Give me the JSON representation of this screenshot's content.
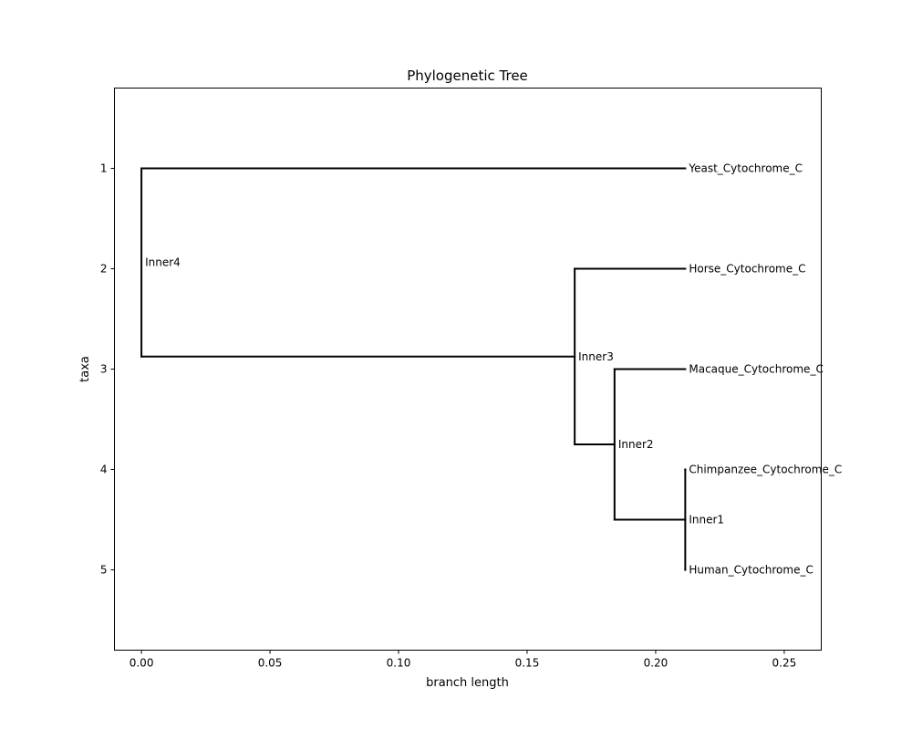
{
  "chart_data": {
    "type": "tree",
    "title": "Phylogenetic Tree",
    "xlabel": "branch length",
    "ylabel": "taxa",
    "xlim": [
      -0.0105,
      0.2644
    ],
    "ylim": [
      5.8,
      0.2
    ],
    "x_ticks": [
      0.0,
      0.05,
      0.1,
      0.15,
      0.2,
      0.25
    ],
    "x_tick_labels": [
      "0.00",
      "0.05",
      "0.10",
      "0.15",
      "0.20",
      "0.25"
    ],
    "y_ticks": [
      1,
      2,
      3,
      4,
      5
    ],
    "y_tick_labels": [
      "1",
      "2",
      "3",
      "4",
      "5"
    ],
    "grid": false,
    "line_color": "#000000",
    "nodes": [
      {
        "id": "Inner4",
        "label": "Inner4",
        "x": 0.0,
        "y": 1.9375,
        "parent": null
      },
      {
        "id": "Yeast",
        "label": "Yeast_Cytochrome_C",
        "x": 0.2115,
        "y": 1,
        "parent": "Inner4"
      },
      {
        "id": "Inner3",
        "label": "Inner3",
        "x": 0.1685,
        "y": 2.875,
        "parent": "Inner4"
      },
      {
        "id": "Horse",
        "label": "Horse_Cytochrome_C",
        "x": 0.2115,
        "y": 2,
        "parent": "Inner3"
      },
      {
        "id": "Inner2",
        "label": "Inner2",
        "x": 0.184,
        "y": 3.75,
        "parent": "Inner3"
      },
      {
        "id": "Macaque",
        "label": "Macaque_Cytochrome_C",
        "x": 0.2115,
        "y": 3,
        "parent": "Inner2"
      },
      {
        "id": "Inner1",
        "label": "Inner1",
        "x": 0.2115,
        "y": 4.5,
        "parent": "Inner2"
      },
      {
        "id": "Chimp",
        "label": "Chimpanzee_Cytochrome_C",
        "x": 0.2115,
        "y": 4,
        "parent": "Inner1"
      },
      {
        "id": "Human",
        "label": "Human_Cytochrome_C",
        "x": 0.2115,
        "y": 5,
        "parent": "Inner1"
      }
    ]
  }
}
